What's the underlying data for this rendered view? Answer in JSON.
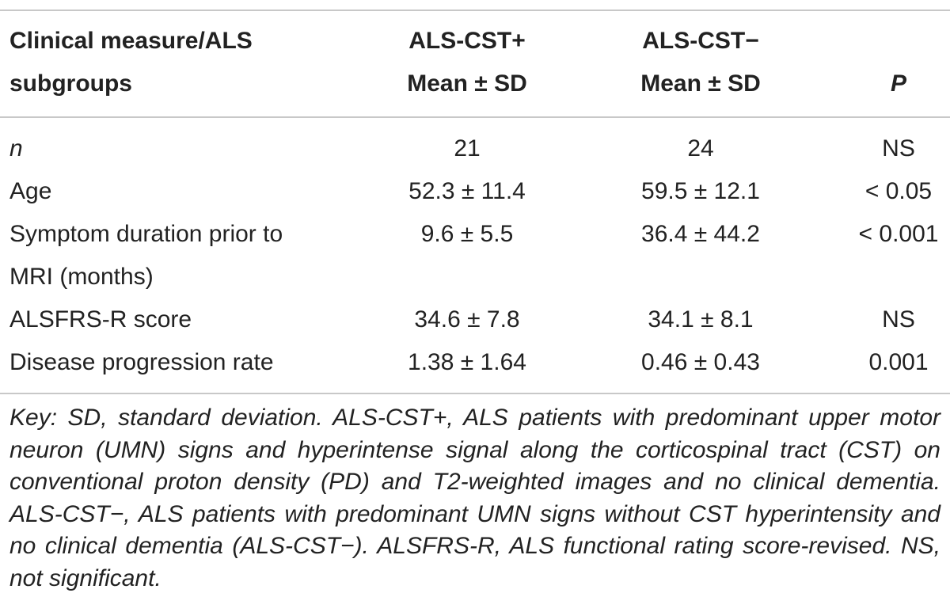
{
  "table": {
    "headers": {
      "measure_line1": "Clinical measure/ALS",
      "measure_line2": "subgroups",
      "cst_plus_line1": "ALS-CST+",
      "cst_plus_line2": "Mean ± SD",
      "cst_minus_line1": "ALS-CST−",
      "cst_minus_line2": "Mean ± SD",
      "p": "P"
    },
    "rows": [
      {
        "label": "n",
        "cst_plus": "21",
        "cst_minus": "24",
        "p": "NS"
      },
      {
        "label": "Age",
        "cst_plus": "52.3 ± 11.4",
        "cst_minus": "59.5 ± 12.1",
        "p": "< 0.05"
      },
      {
        "label": "Symptom duration prior to MRI (months)",
        "cst_plus": "9.6 ± 5.5",
        "cst_minus": "36.4 ± 44.2",
        "p": "< 0.001"
      },
      {
        "label": "ALSFRS-R score",
        "cst_plus": "34.6 ± 7.8",
        "cst_minus": "34.1 ± 8.1",
        "p": "NS"
      },
      {
        "label": "Disease progression rate",
        "cst_plus": "1.38 ± 1.64",
        "cst_minus": "0.46 ± 0.43",
        "p": "0.001"
      }
    ],
    "footnote": "Key: SD, standard deviation. ALS-CST+, ALS patients with predominant upper motor neuron (UMN) signs and hyperintense signal along the corticospinal tract (CST) on conventional proton density (PD) and T2-weighted images and no clinical dementia. ALS-CST−, ALS patients with predominant UMN signs without CST hyperintensity and no clinical dementia (ALS-CST−). ALSFRS-R, ALS functional rating score-revised. NS, not significant."
  }
}
